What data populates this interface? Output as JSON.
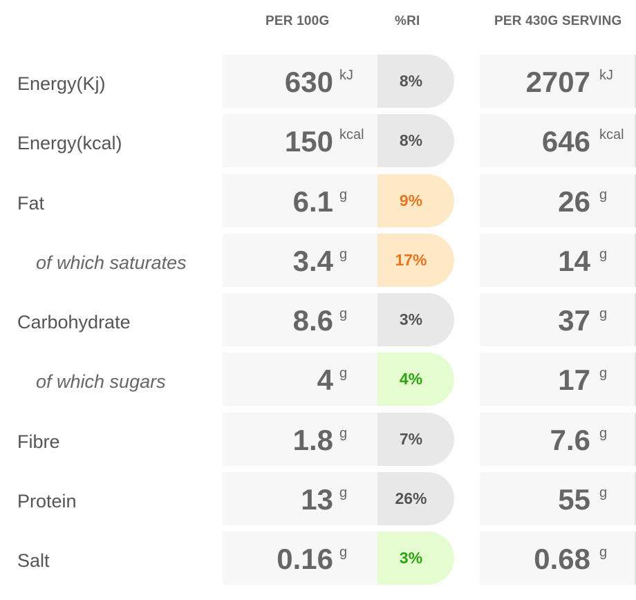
{
  "headers": {
    "per_100g": "PER 100G",
    "ri": "%RI",
    "per_serving": "PER 430G SERVING"
  },
  "rows": [
    {
      "label": "Energy(Kj)",
      "sub": false,
      "per_100g": "630",
      "unit": "kJ",
      "ri": "8%",
      "ri_level": "neutral",
      "per_serving": "2707"
    },
    {
      "label": "Energy(kcal)",
      "sub": false,
      "per_100g": "150",
      "unit": "kcal",
      "ri": "8%",
      "ri_level": "neutral",
      "per_serving": "646"
    },
    {
      "label": "Fat",
      "sub": false,
      "per_100g": "6.1",
      "unit": "g",
      "ri": "9%",
      "ri_level": "amber",
      "per_serving": "26"
    },
    {
      "label": "of which saturates",
      "sub": true,
      "per_100g": "3.4",
      "unit": "g",
      "ri": "17%",
      "ri_level": "amber",
      "per_serving": "14"
    },
    {
      "label": "Carbohydrate",
      "sub": false,
      "per_100g": "8.6",
      "unit": "g",
      "ri": "3%",
      "ri_level": "neutral",
      "per_serving": "37"
    },
    {
      "label": "of which sugars",
      "sub": true,
      "per_100g": "4",
      "unit": "g",
      "ri": "4%",
      "ri_level": "green",
      "per_serving": "17"
    },
    {
      "label": "Fibre",
      "sub": false,
      "per_100g": "1.8",
      "unit": "g",
      "ri": "7%",
      "ri_level": "neutral",
      "per_serving": "7.6"
    },
    {
      "label": "Protein",
      "sub": false,
      "per_100g": "13",
      "unit": "g",
      "ri": "26%",
      "ri_level": "neutral",
      "per_serving": "55"
    },
    {
      "label": "Salt",
      "sub": false,
      "per_100g": "0.16",
      "unit": "g",
      "ri": "3%",
      "ri_level": "green",
      "per_serving": "0.68"
    }
  ],
  "colors": {
    "neutral_bg": "#e8e8e8",
    "amber_bg": "#fde9c5",
    "amber_text": "#e8741f",
    "green_bg": "#e5fbd0",
    "green_text": "#2aa60c",
    "cell_bg": "#f7f7f7"
  }
}
